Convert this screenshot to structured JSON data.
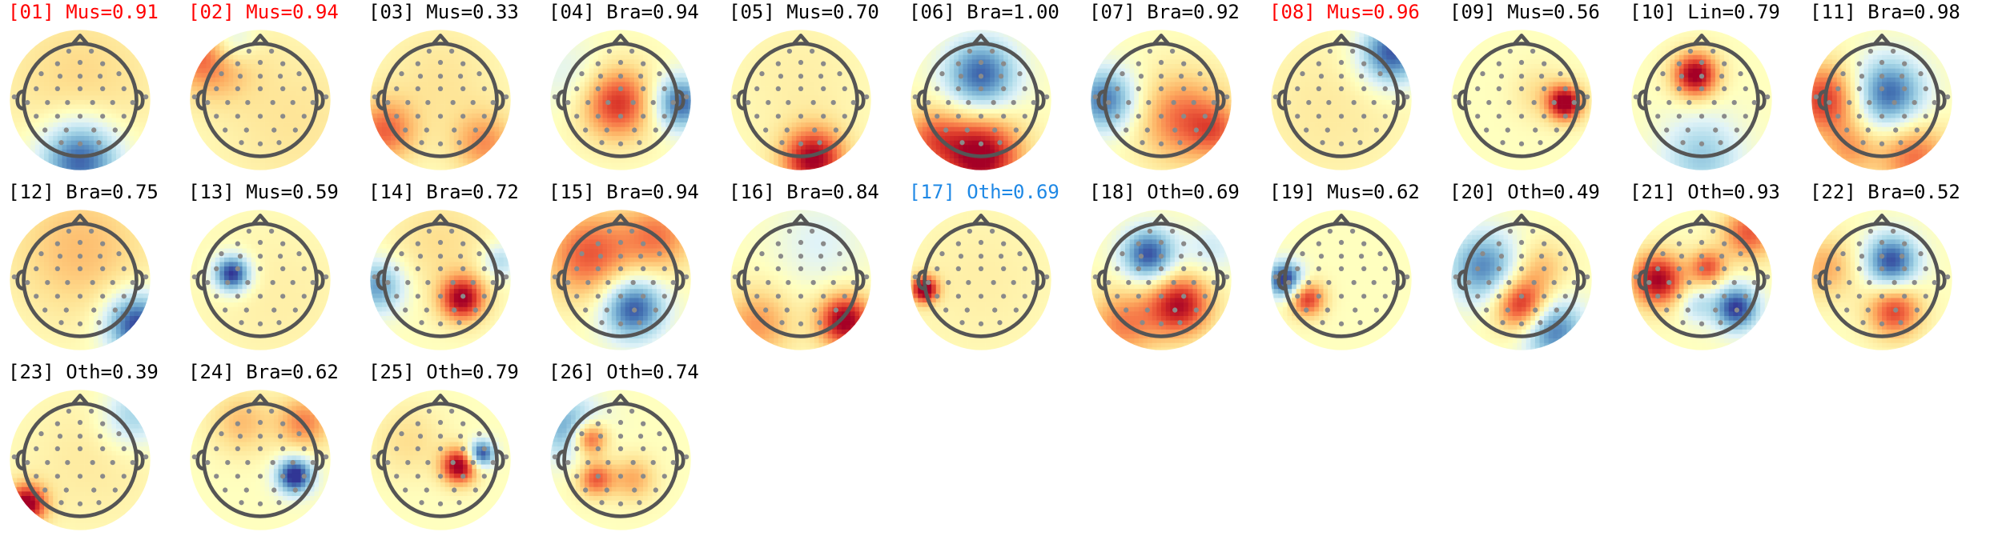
{
  "label_colors": {
    "normal": "#000000",
    "rejected": "#ff0000",
    "highlight": "#1e88e5"
  },
  "colormap": [
    "#313695",
    "#4575b4",
    "#74add1",
    "#abd9e9",
    "#e0f3f8",
    "#ffffbf",
    "#fee090",
    "#fdae61",
    "#f46d43",
    "#d73027",
    "#a50026"
  ],
  "components": [
    {
      "label": "[01] Mus=0.91",
      "status": "rejected"
    },
    {
      "label": "[02] Mus=0.94",
      "status": "rejected"
    },
    {
      "label": "[03] Mus=0.33",
      "status": "normal"
    },
    {
      "label": "[04] Bra=0.94",
      "status": "normal"
    },
    {
      "label": "[05] Mus=0.70",
      "status": "normal"
    },
    {
      "label": "[06] Bra=1.00",
      "status": "normal"
    },
    {
      "label": "[07] Bra=0.92",
      "status": "normal"
    },
    {
      "label": "[08] Mus=0.96",
      "status": "rejected"
    },
    {
      "label": "[09] Mus=0.56",
      "status": "normal"
    },
    {
      "label": "[10] Lin=0.79",
      "status": "normal"
    },
    {
      "label": "[11] Bra=0.98",
      "status": "normal"
    },
    {
      "label": "[12] Bra=0.75",
      "status": "normal"
    },
    {
      "label": "[13] Mus=0.59",
      "status": "normal"
    },
    {
      "label": "[14] Bra=0.72",
      "status": "normal"
    },
    {
      "label": "[15] Bra=0.94",
      "status": "normal"
    },
    {
      "label": "[16] Bra=0.84",
      "status": "normal"
    },
    {
      "label": "[17] Oth=0.69",
      "status": "highlight"
    },
    {
      "label": "[18] Oth=0.69",
      "status": "normal"
    },
    {
      "label": "[19] Mus=0.62",
      "status": "normal"
    },
    {
      "label": "[20] Oth=0.49",
      "status": "normal"
    },
    {
      "label": "[21] Oth=0.93",
      "status": "normal"
    },
    {
      "label": "[22] Bra=0.52",
      "status": "normal"
    },
    {
      "label": "[23] Oth=0.39",
      "status": "normal"
    },
    {
      "label": "[24] Bra=0.62",
      "status": "normal"
    },
    {
      "label": "[25] Oth=0.79",
      "status": "normal"
    },
    {
      "label": "[26] Oth=0.74",
      "status": "normal"
    }
  ]
}
